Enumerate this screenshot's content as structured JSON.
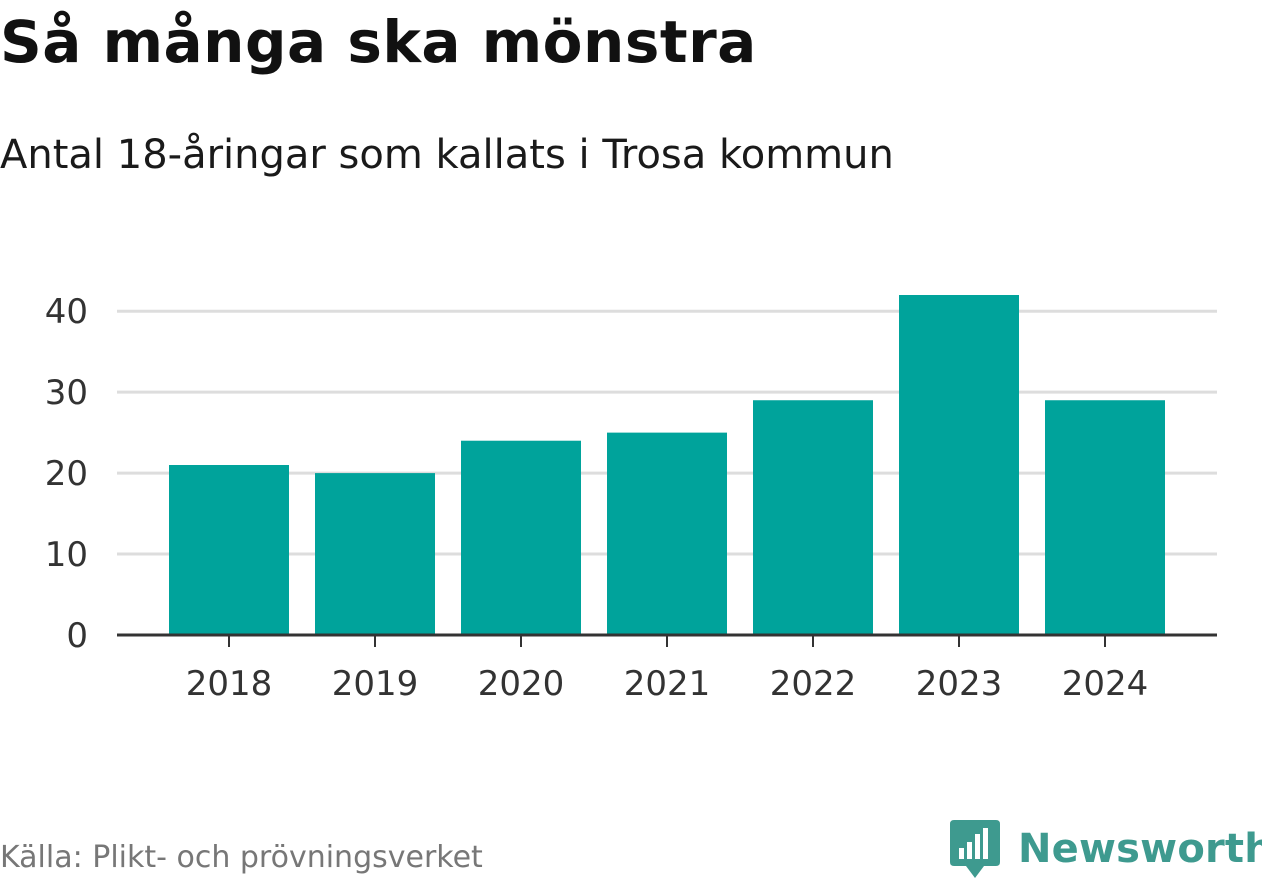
{
  "header": {
    "title": "Så många ska mönstra",
    "subtitle": "Antal 18-åringar som kallats i Trosa kommun"
  },
  "footer": {
    "source": "Källa: Plikt- och prövningsverket",
    "brand": "Newsworthy",
    "brand_icon": "bar-chart-badge-icon"
  },
  "colors": {
    "bar": "#00a39b",
    "grid": "#dddddd",
    "axis": "#333333",
    "brand": "#3e9a8f"
  },
  "chart_data": {
    "type": "bar",
    "title": "Så många ska mönstra",
    "subtitle": "Antal 18-åringar som kallats i Trosa kommun",
    "categories": [
      "2018",
      "2019",
      "2020",
      "2021",
      "2022",
      "2023",
      "2024"
    ],
    "values": [
      21,
      20,
      24,
      25,
      29,
      42,
      29
    ],
    "xlabel": "",
    "ylabel": "",
    "ylim": [
      0,
      42
    ],
    "yticks": [
      0,
      10,
      20,
      30,
      40
    ],
    "grid": true,
    "legend": "none"
  }
}
